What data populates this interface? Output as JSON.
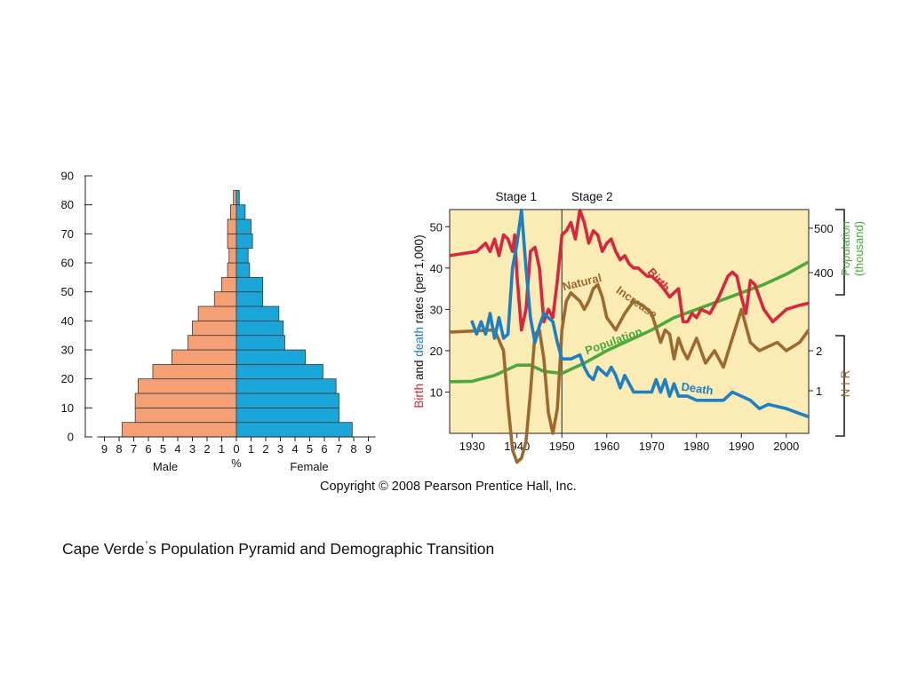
{
  "chart_data": [
    {
      "type": "bar",
      "subtype": "population-pyramid",
      "y_ticks": [
        "0",
        "10",
        "20",
        "30",
        "40",
        "50",
        "60",
        "70",
        "80",
        "90"
      ],
      "x_ticks_left": [
        "9",
        "8",
        "7",
        "6",
        "5",
        "4",
        "3",
        "2",
        "1",
        "0"
      ],
      "x_ticks_right": [
        "1",
        "2",
        "3",
        "4",
        "5",
        "6",
        "7",
        "8",
        "9"
      ],
      "xlabel_left": "Male",
      "xlabel_center": "%",
      "xlabel_right": "Female",
      "age_groups_lower": [
        0,
        5,
        10,
        15,
        20,
        25,
        30,
        35,
        40,
        45,
        50,
        55,
        60,
        65,
        70,
        75,
        80
      ],
      "series": [
        {
          "name": "Male",
          "color": "#F4A074",
          "values": [
            7.8,
            6.9,
            6.9,
            6.7,
            5.7,
            4.4,
            3.3,
            3.0,
            2.6,
            1.5,
            1.0,
            0.6,
            0.5,
            0.6,
            0.6,
            0.4,
            0.2
          ]
        },
        {
          "name": "Female",
          "color": "#1AA6D8",
          "values": [
            7.9,
            7.0,
            7.0,
            6.8,
            5.9,
            4.7,
            3.3,
            3.2,
            2.9,
            1.8,
            1.8,
            0.9,
            0.8,
            1.1,
            1.0,
            0.6,
            0.2
          ]
        }
      ],
      "ylim": [
        0,
        90
      ],
      "xlim": [
        -9,
        9
      ]
    },
    {
      "type": "line",
      "subtype": "demographic-transition",
      "stages": [
        {
          "label": "Stage 1",
          "x": 1940
        },
        {
          "label": "Stage 2",
          "x": 1950
        }
      ],
      "stage_divider_x": 1950,
      "x_ticks": [
        "1930",
        "1940",
        "1950",
        "1960",
        "1970",
        "1980",
        "1990",
        "2000"
      ],
      "xlim": [
        1925,
        2005
      ],
      "left_axis": {
        "label_parts": [
          {
            "text": "Birth",
            "color": "#D7263D"
          },
          {
            "text": " and ",
            "color": "#111111"
          },
          {
            "text": "death",
            "color": "#1E7FC2"
          },
          {
            "text": " rates (per 1,000)",
            "color": "#111111"
          }
        ],
        "ticks": [
          "10",
          "20",
          "30",
          "40",
          "50"
        ],
        "ylim": [
          0,
          55
        ]
      },
      "right_axis_population": {
        "label_line1": "Population",
        "label_line2": "(thousand)",
        "color": "#4BAA3A",
        "ticks": [
          "400",
          "500"
        ]
      },
      "right_axis_nir": {
        "label": "N  I  R",
        "color": "#9C6A2E",
        "ticks": [
          "1",
          "2"
        ]
      },
      "series": [
        {
          "name": "Birth",
          "color": "#D7263D",
          "x": [
            1925,
            1928,
            1931,
            1933,
            1934,
            1935,
            1936,
            1937,
            1938,
            1939,
            1939.5,
            1940,
            1941,
            1942,
            1943,
            1944,
            1945,
            1946,
            1947,
            1948,
            1949,
            1950,
            1951,
            1952,
            1953,
            1954,
            1955,
            1956,
            1957,
            1958,
            1959,
            1960,
            1961,
            1962,
            1963,
            1964,
            1965,
            1966,
            1967,
            1968,
            1969,
            1970,
            1972,
            1974,
            1975,
            1976,
            1977,
            1978,
            1979,
            1980,
            1981,
            1983,
            1985,
            1987,
            1988,
            1989,
            1990,
            1991,
            1992,
            1993,
            1995,
            1997,
            2000,
            2003,
            2005
          ],
          "y": [
            43,
            43.5,
            44,
            46,
            44,
            47,
            43,
            48,
            47,
            44,
            48,
            38,
            25,
            30,
            44,
            45,
            40,
            27,
            30,
            28,
            37,
            48,
            49,
            51,
            47,
            54,
            51,
            46,
            49,
            48,
            44,
            46,
            47,
            44,
            42,
            43,
            41,
            40,
            40,
            39,
            38,
            38,
            36,
            33,
            34,
            35,
            27,
            27,
            29,
            28,
            30,
            29,
            33,
            38,
            39,
            38,
            33,
            29,
            37,
            36,
            30,
            27,
            30,
            31,
            31.5
          ]
        },
        {
          "name": "Death",
          "color": "#1E7FC2",
          "x": [
            1930,
            1931,
            1932,
            1933,
            1934,
            1935,
            1936,
            1937,
            1938,
            1939,
            1940,
            1941,
            1942,
            1943,
            1944,
            1945,
            1946,
            1947,
            1948,
            1949,
            1950,
            1952,
            1954,
            1955,
            1956,
            1957,
            1958,
            1960,
            1961,
            1962,
            1963,
            1964,
            1965,
            1966,
            1968,
            1970,
            1971,
            1972,
            1973,
            1974,
            1975,
            1976,
            1978,
            1980,
            1982,
            1984,
            1986,
            1988,
            1990,
            1992,
            1994,
            1996,
            2000,
            2005
          ],
          "y": [
            27,
            24,
            27,
            24,
            29,
            23,
            28,
            23,
            24,
            40,
            46,
            54,
            40,
            28,
            22,
            26,
            29,
            28,
            27,
            22,
            18,
            18,
            19,
            16,
            14,
            13,
            16,
            14,
            16,
            14,
            11,
            14,
            12,
            10,
            10,
            10,
            13,
            10,
            13,
            9,
            12,
            9,
            9,
            8,
            8,
            8,
            8,
            10,
            9,
            8,
            6,
            7,
            6,
            4
          ]
        },
        {
          "name": "Natural Increase",
          "color": "#9C6A2E",
          "x": [
            1925,
            1935,
            1937,
            1938,
            1939,
            1940,
            1941,
            1942,
            1943,
            1944,
            1945,
            1946,
            1947,
            1948,
            1949,
            1950,
            1951,
            1952,
            1953,
            1954,
            1955,
            1956,
            1957,
            1958,
            1959,
            1960,
            1962,
            1964,
            1966,
            1968,
            1970,
            1972,
            1973,
            1974,
            1975,
            1976,
            1977,
            1978,
            1980,
            1982,
            1984,
            1986,
            1988,
            1990,
            1992,
            1994,
            1996,
            1998,
            2000,
            2003,
            2005
          ],
          "y": [
            24.5,
            25,
            20,
            7,
            -4,
            -7,
            -6,
            -2,
            10,
            24,
            25,
            18,
            5,
            0,
            6,
            25,
            32,
            34,
            33,
            32,
            30,
            32,
            35,
            36,
            33,
            28,
            25,
            29,
            32,
            31,
            29,
            22,
            25,
            24,
            18,
            23,
            20,
            18,
            23,
            17,
            20,
            16,
            23,
            30,
            22,
            20,
            21,
            22,
            20,
            22,
            25
          ]
        },
        {
          "name": "Population",
          "color": "#4BAA3A",
          "x": [
            1925,
            1930,
            1935,
            1940,
            1943,
            1946,
            1950,
            1955,
            1960,
            1965,
            1970,
            1975,
            1980,
            1985,
            1990,
            1995,
            2000,
            2005
          ],
          "y": [
            12.5,
            12.6,
            14,
            16.5,
            16.5,
            15,
            14.5,
            17,
            20,
            22.5,
            25,
            28,
            30,
            32,
            34,
            36,
            38.5,
            41.5
          ]
        }
      ],
      "annotations": [
        "Natural",
        "Increase",
        "Birth",
        "Population",
        "Death"
      ]
    }
  ],
  "copyright": "Copyright © 2008 Pearson Prentice Hall, Inc.",
  "caption": {
    "part1": "Cape Verde",
    "apostrophe": "’",
    "part2": "s Population Pyramid and Demographic Transition"
  }
}
